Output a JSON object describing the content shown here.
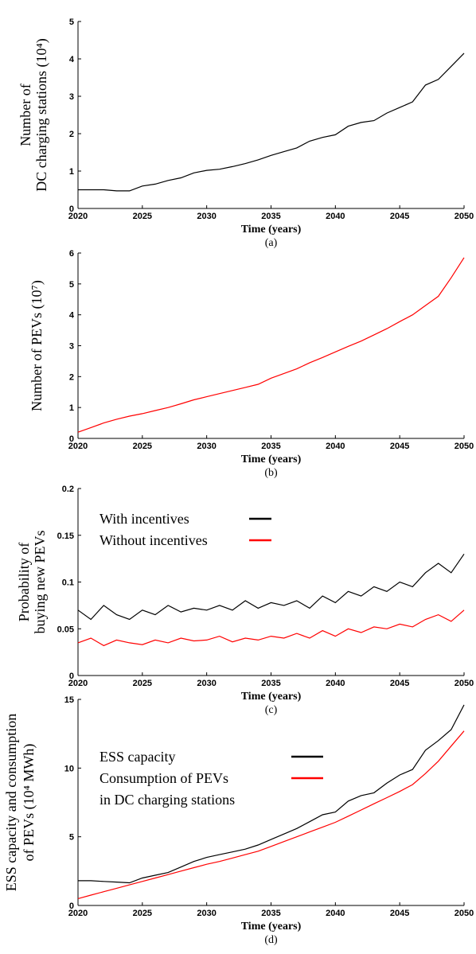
{
  "chart_data": [
    {
      "type": "line",
      "caption": "(a)",
      "xlabel": "Time (years)",
      "ylabel": [
        "Number of",
        "DC charging stations (10⁴)"
      ],
      "x": [
        2020,
        2021,
        2022,
        2023,
        2024,
        2025,
        2026,
        2027,
        2028,
        2029,
        2030,
        2031,
        2032,
        2033,
        2034,
        2035,
        2036,
        2037,
        2038,
        2039,
        2040,
        2041,
        2042,
        2043,
        2044,
        2045,
        2046,
        2047,
        2048,
        2049,
        2050
      ],
      "xlim": [
        2020,
        2050
      ],
      "xticks": [
        2020,
        2025,
        2030,
        2035,
        2040,
        2045,
        2050
      ],
      "ylim": [
        0,
        5
      ],
      "yticks": [
        0,
        1,
        2,
        3,
        4,
        5
      ],
      "series": [
        {
          "color": "#000000",
          "values": [
            0.5,
            0.5,
            0.5,
            0.47,
            0.47,
            0.6,
            0.65,
            0.75,
            0.82,
            0.95,
            1.02,
            1.05,
            1.12,
            1.2,
            1.3,
            1.42,
            1.52,
            1.62,
            1.8,
            1.9,
            1.97,
            2.2,
            2.3,
            2.35,
            2.55,
            2.7,
            2.85,
            3.3,
            3.45,
            3.8,
            4.15
          ]
        }
      ]
    },
    {
      "type": "line",
      "caption": "(b)",
      "xlabel": "Time (years)",
      "ylabel": [
        "Number of PEVs (10⁷)"
      ],
      "x": [
        2020,
        2021,
        2022,
        2023,
        2024,
        2025,
        2026,
        2027,
        2028,
        2029,
        2030,
        2031,
        2032,
        2033,
        2034,
        2035,
        2036,
        2037,
        2038,
        2039,
        2040,
        2041,
        2042,
        2043,
        2044,
        2045,
        2046,
        2047,
        2048,
        2049,
        2050
      ],
      "xlim": [
        2020,
        2050
      ],
      "xticks": [
        2020,
        2025,
        2030,
        2035,
        2040,
        2045,
        2050
      ],
      "ylim": [
        0,
        6
      ],
      "yticks": [
        0,
        1,
        2,
        3,
        4,
        5,
        6
      ],
      "series": [
        {
          "color": "#ff0000",
          "values": [
            0.2,
            0.35,
            0.5,
            0.62,
            0.72,
            0.8,
            0.9,
            1.0,
            1.12,
            1.25,
            1.35,
            1.45,
            1.55,
            1.65,
            1.75,
            1.95,
            2.1,
            2.25,
            2.45,
            2.62,
            2.8,
            2.98,
            3.15,
            3.35,
            3.55,
            3.78,
            4.0,
            4.3,
            4.6,
            5.2,
            5.85
          ]
        }
      ]
    },
    {
      "type": "line",
      "caption": "(c)",
      "xlabel": "Time (years)",
      "ylabel": [
        "Probability of",
        "buying new PEVs"
      ],
      "x": [
        2020,
        2021,
        2022,
        2023,
        2024,
        2025,
        2026,
        2027,
        2028,
        2029,
        2030,
        2031,
        2032,
        2033,
        2034,
        2035,
        2036,
        2037,
        2038,
        2039,
        2040,
        2041,
        2042,
        2043,
        2044,
        2045,
        2046,
        2047,
        2048,
        2049,
        2050
      ],
      "xlim": [
        2020,
        2050
      ],
      "xticks": [
        2020,
        2025,
        2030,
        2035,
        2040,
        2045,
        2050
      ],
      "ylim": [
        0,
        0.2
      ],
      "yticks": [
        0,
        0.05,
        0.1,
        0.15,
        0.2
      ],
      "series": [
        {
          "name": [
            "With incentives"
          ],
          "color": "#000000",
          "values": [
            0.07,
            0.06,
            0.075,
            0.065,
            0.06,
            0.07,
            0.065,
            0.075,
            0.068,
            0.072,
            0.07,
            0.075,
            0.07,
            0.08,
            0.072,
            0.078,
            0.075,
            0.08,
            0.072,
            0.085,
            0.078,
            0.09,
            0.085,
            0.095,
            0.09,
            0.1,
            0.095,
            0.11,
            0.12,
            0.11,
            0.13
          ]
        },
        {
          "name": [
            "Without incentives"
          ],
          "color": "#ff0000",
          "values": [
            0.035,
            0.04,
            0.032,
            0.038,
            0.035,
            0.033,
            0.038,
            0.035,
            0.04,
            0.037,
            0.038,
            0.042,
            0.036,
            0.04,
            0.038,
            0.042,
            0.04,
            0.045,
            0.04,
            0.048,
            0.042,
            0.05,
            0.046,
            0.052,
            0.05,
            0.055,
            0.052,
            0.06,
            0.065,
            0.058,
            0.07
          ]
        }
      ]
    },
    {
      "type": "line",
      "caption": "(d)",
      "xlabel": "Time (years)",
      "ylabel": [
        "ESS capacity and consumption",
        "of PEVs (10⁴ MWh)"
      ],
      "x": [
        2020,
        2021,
        2022,
        2023,
        2024,
        2025,
        2026,
        2027,
        2028,
        2029,
        2030,
        2031,
        2032,
        2033,
        2034,
        2035,
        2036,
        2037,
        2038,
        2039,
        2040,
        2041,
        2042,
        2043,
        2044,
        2045,
        2046,
        2047,
        2048,
        2049,
        2050
      ],
      "xlim": [
        2020,
        2050
      ],
      "xticks": [
        2020,
        2025,
        2030,
        2035,
        2040,
        2045,
        2050
      ],
      "ylim": [
        0,
        15
      ],
      "yticks": [
        0,
        5,
        10,
        15
      ],
      "series": [
        {
          "name": [
            "ESS capacity"
          ],
          "color": "#000000",
          "values": [
            1.8,
            1.8,
            1.75,
            1.7,
            1.65,
            2.0,
            2.2,
            2.4,
            2.8,
            3.2,
            3.5,
            3.7,
            3.9,
            4.1,
            4.4,
            4.8,
            5.2,
            5.6,
            6.1,
            6.6,
            6.8,
            7.6,
            8.0,
            8.2,
            8.9,
            9.5,
            9.9,
            11.3,
            12.0,
            12.8,
            14.6
          ]
        },
        {
          "name": [
            "Consumption of PEVs",
            "in DC charging stations"
          ],
          "color": "#ff0000",
          "values": [
            0.5,
            0.75,
            1.0,
            1.25,
            1.5,
            1.75,
            2.0,
            2.25,
            2.5,
            2.75,
            3.0,
            3.2,
            3.45,
            3.7,
            3.95,
            4.3,
            4.65,
            5.0,
            5.35,
            5.7,
            6.05,
            6.5,
            6.95,
            7.4,
            7.85,
            8.3,
            8.8,
            9.6,
            10.5,
            11.6,
            12.7
          ]
        }
      ]
    }
  ]
}
